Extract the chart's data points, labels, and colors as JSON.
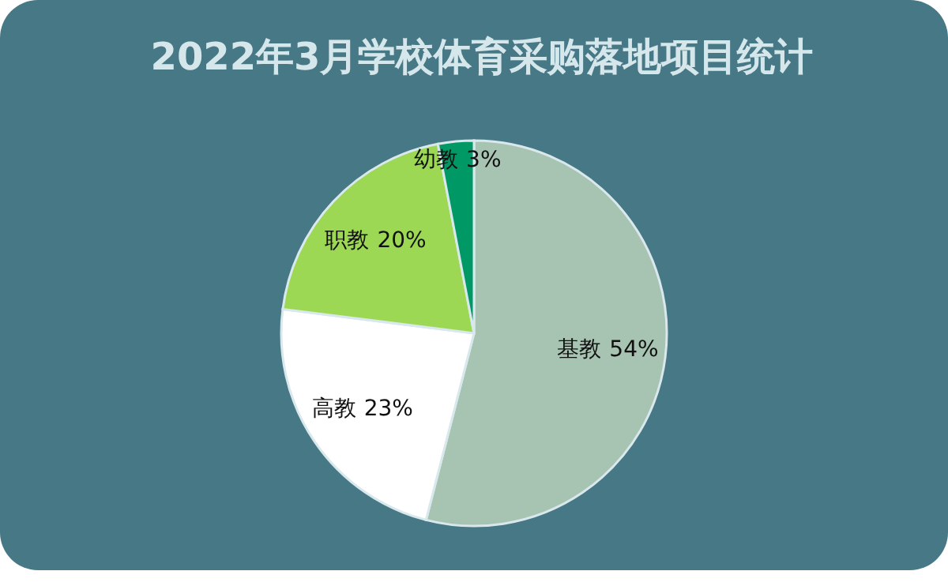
{
  "chart_data": {
    "type": "pie",
    "title": "2022年3月学校体育采购落地项目统计",
    "categories": [
      "基教",
      "高教",
      "职教",
      "幼教"
    ],
    "values": [
      54,
      23,
      20,
      3
    ],
    "colors": [
      "#a7c3b2",
      "#ffffff",
      "#9cd854",
      "#009966"
    ],
    "value_labels": [
      "54%",
      "23%",
      "20%",
      "3%"
    ]
  }
}
